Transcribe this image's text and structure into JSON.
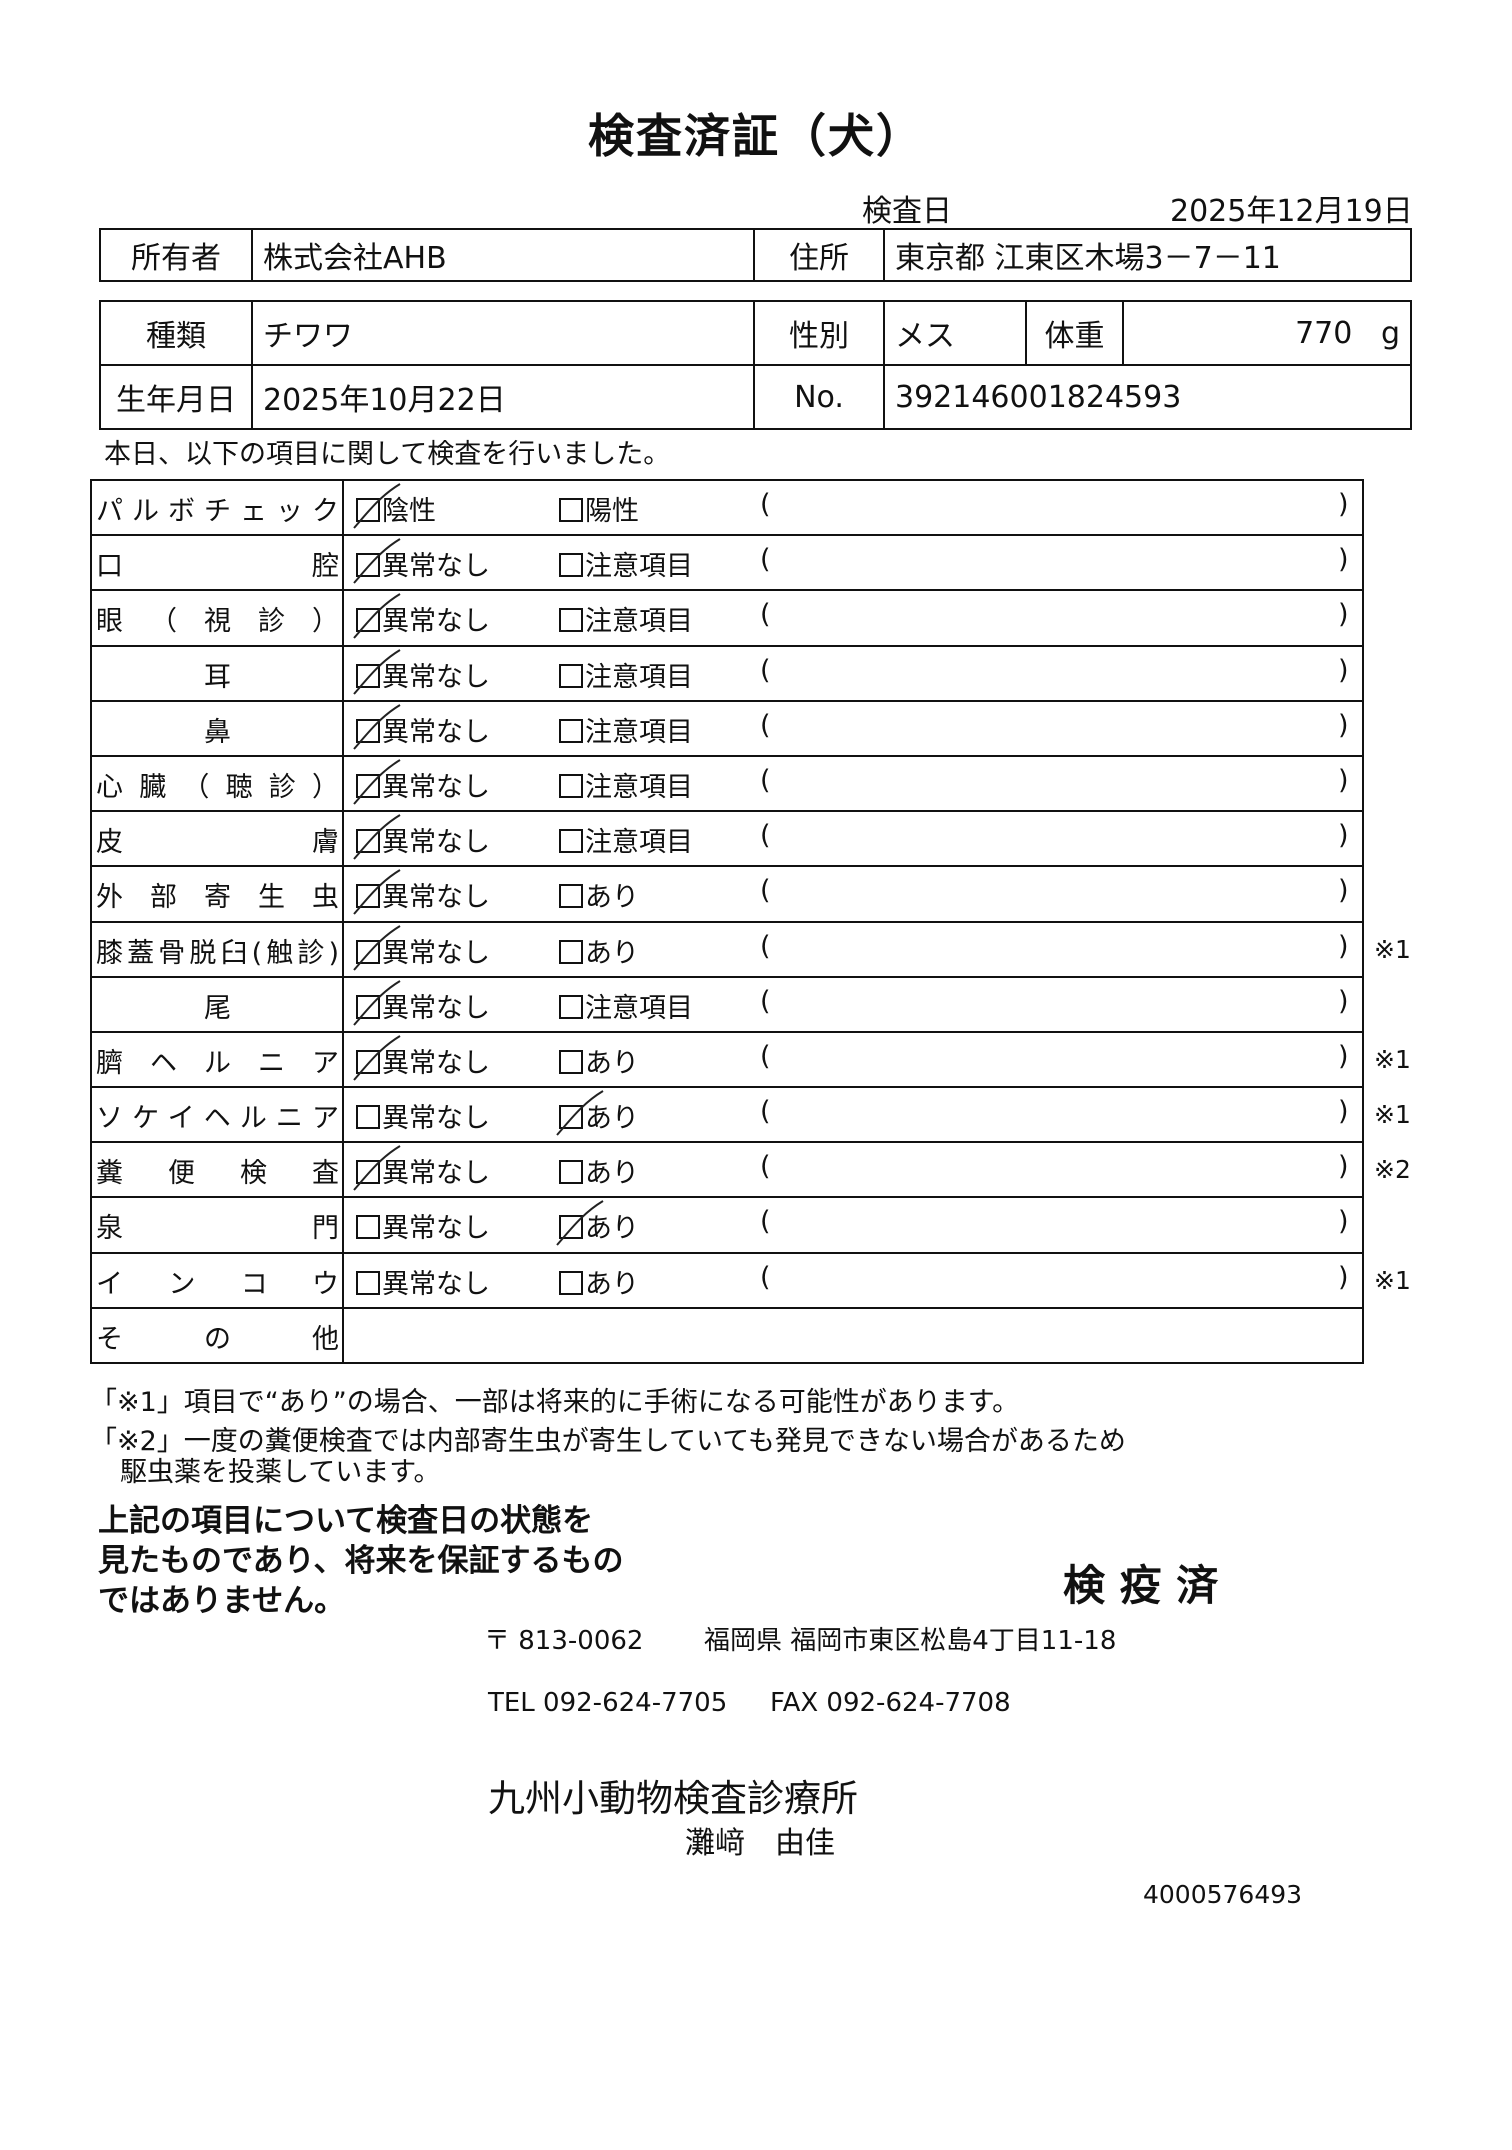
{
  "title": "検査済証（犬）",
  "exam_date_label": "検査日",
  "exam_date": "2025年12月19日",
  "owner": {
    "label": "所有者",
    "value": "株式会社AHB",
    "address_label": "住所",
    "address": "東京都 江東区木場3－7－11"
  },
  "pet": {
    "breed_label": "種類",
    "breed": "チワワ",
    "sex_label": "性別",
    "sex": "メス",
    "weight_label": "体重",
    "weight": "770",
    "weight_unit": "g",
    "birth_label": "生年月日",
    "birth": "2025年10月22日",
    "no_label": "No.",
    "no": "392146001824593"
  },
  "intro": "本日、以下の項目に関して検査を行いました。",
  "checklist": [
    {
      "label": "パルボチェック",
      "opt1": "陰性",
      "opt1_checked": true,
      "opt2": "陽性",
      "opt2_checked": false,
      "note": ""
    },
    {
      "label": "口腔",
      "opt1": "異常なし",
      "opt1_checked": true,
      "opt2": "注意項目",
      "opt2_checked": false,
      "note": ""
    },
    {
      "label": "眼（視診）",
      "opt1": "異常なし",
      "opt1_checked": true,
      "opt2": "注意項目",
      "opt2_checked": false,
      "note": ""
    },
    {
      "label": "耳",
      "opt1": "異常なし",
      "opt1_checked": true,
      "opt2": "注意項目",
      "opt2_checked": false,
      "note": ""
    },
    {
      "label": "鼻",
      "opt1": "異常なし",
      "opt1_checked": true,
      "opt2": "注意項目",
      "opt2_checked": false,
      "note": ""
    },
    {
      "label": "心臓（聴診）",
      "opt1": "異常なし",
      "opt1_checked": true,
      "opt2": "注意項目",
      "opt2_checked": false,
      "note": ""
    },
    {
      "label": "皮膚",
      "opt1": "異常なし",
      "opt1_checked": true,
      "opt2": "注意項目",
      "opt2_checked": false,
      "note": ""
    },
    {
      "label": "外部寄生虫",
      "opt1": "異常なし",
      "opt1_checked": true,
      "opt2": "あり",
      "opt2_checked": false,
      "note": ""
    },
    {
      "label": "膝蓋骨脱臼(触診)",
      "opt1": "異常なし",
      "opt1_checked": true,
      "opt2": "あり",
      "opt2_checked": false,
      "note": "※1"
    },
    {
      "label": "尾",
      "opt1": "異常なし",
      "opt1_checked": true,
      "opt2": "注意項目",
      "opt2_checked": false,
      "note": ""
    },
    {
      "label": "臍ヘルニア",
      "opt1": "異常なし",
      "opt1_checked": true,
      "opt2": "あり",
      "opt2_checked": false,
      "note": "※1"
    },
    {
      "label": "ソケイヘルニア",
      "opt1": "異常なし",
      "opt1_checked": false,
      "opt2": "あり",
      "opt2_checked": true,
      "note": "※1"
    },
    {
      "label": "糞便検査",
      "opt1": "異常なし",
      "opt1_checked": true,
      "opt2": "あり",
      "opt2_checked": false,
      "note": "※2"
    },
    {
      "label": "泉門",
      "opt1": "異常なし",
      "opt1_checked": false,
      "opt2": "あり",
      "opt2_checked": true,
      "note": ""
    },
    {
      "label": "インコウ",
      "opt1": "異常なし",
      "opt1_checked": false,
      "opt2": "あり",
      "opt2_checked": false,
      "note": "※1"
    }
  ],
  "other_label": "その他",
  "paren_open": "(",
  "paren_close": ")",
  "footnote1": "「※1」項目で“あり”の場合、一部は将来的に手術になる可能性があります。",
  "footnote2a": "「※2」一度の糞便検査では内部寄生虫が寄生していても発見できない場合があるため",
  "footnote2b": "駆虫薬を投薬しています。",
  "disclaimer": [
    "上記の項目について検査日の状態を",
    "見たものであり、将来を保証するもの",
    "ではありません。"
  ],
  "stamp": "検 疫 済",
  "postal": "〒 813-0062",
  "address": "福岡県 福岡市東区松島4丁目11-18",
  "tel": "TEL 092-624-7705",
  "fax": "FAX 092-624-7708",
  "clinic": "九州小動物検査診療所",
  "vet": "灘﨑　由佳",
  "doc_id": "4000576493"
}
